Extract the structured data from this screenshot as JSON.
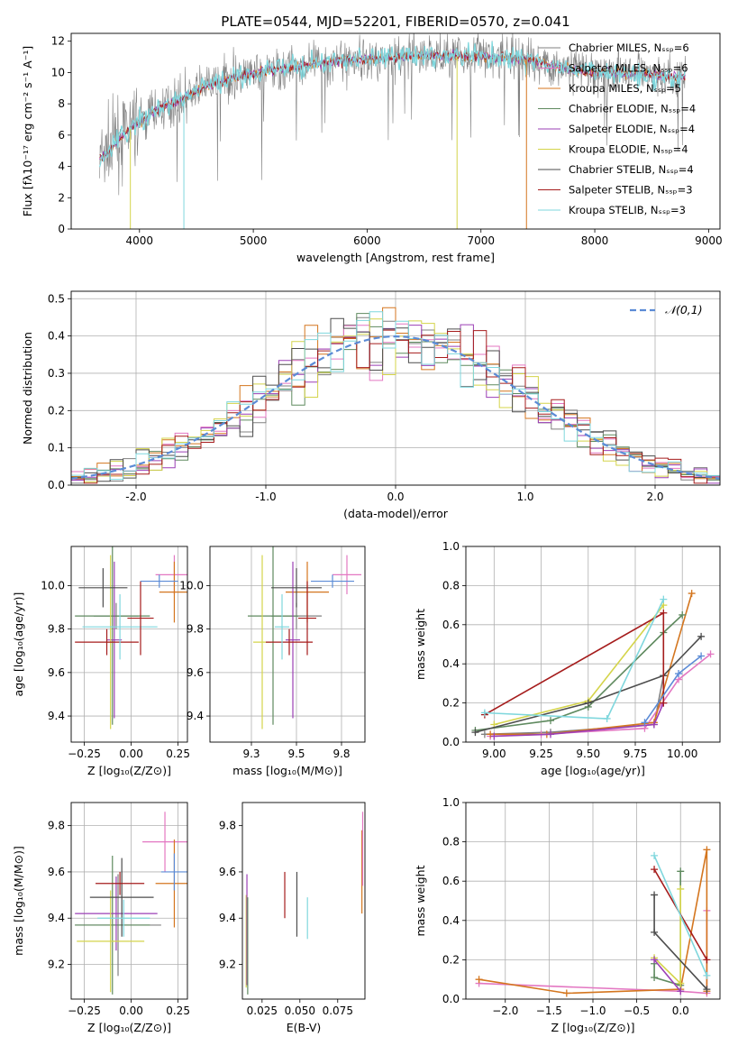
{
  "palette": [
    "#808080",
    "#e377c2",
    "#d4761f",
    "#5f8a5f",
    "#9b3fb5",
    "#d4d44a",
    "#4d4d4d",
    "#a51c1c",
    "#7fd7dd"
  ],
  "chart_data": [
    {
      "id": "spectrum",
      "type": "line",
      "title": "PLATE=0544, MJD=52201, FIBERID=0570, z=0.041",
      "xlabel": "wavelength [Angstrom, rest frame]",
      "ylabel": "Flux [fλ10⁻¹⁷ erg cm⁻² s⁻¹ A⁻¹]",
      "xlim": [
        3400,
        9100
      ],
      "ylim": [
        0,
        12.5
      ],
      "xticks": [
        4000,
        5000,
        6000,
        7000,
        8000,
        9000
      ],
      "yticks": [
        0,
        2,
        4,
        6,
        8,
        10,
        12
      ],
      "legend_position": "top-right",
      "legend": [
        {
          "label": "Chabrier MILES, Nₛₛₚ=6",
          "color": "#808080"
        },
        {
          "label": "Salpeter MILES, Nₛₛₚ=6",
          "color": "#e377c2"
        },
        {
          "label": "Kroupa MILES, Nₛₛₚ=5",
          "color": "#d4761f"
        },
        {
          "label": "Chabrier ELODIE, Nₛₛₚ=4",
          "color": "#5f8a5f"
        },
        {
          "label": "Salpeter ELODIE, Nₛₛₚ=4",
          "color": "#9b3fb5"
        },
        {
          "label": "Kroupa ELODIE, Nₛₛₚ=4",
          "color": "#d4d44a"
        },
        {
          "label": "Chabrier STELIB, Nₛₛₚ=4",
          "color": "#4d4d4d"
        },
        {
          "label": "Salpeter STELIB, Nₛₛₚ=3",
          "color": "#a51c1c"
        },
        {
          "label": "Kroupa STELIB, Nₛₛₚ=3",
          "color": "#7fd7dd"
        }
      ],
      "continuum": {
        "x": [
          3650,
          3720,
          3800,
          3900,
          4000,
          4100,
          4200,
          4300,
          4400,
          4500,
          4700,
          4900,
          5100,
          5300,
          5500,
          5700,
          5900,
          6100,
          6300,
          6500,
          6700,
          6900,
          7100,
          7300,
          7450,
          7600,
          7800,
          8000,
          8200,
          8400,
          8600,
          8800
        ],
        "y": [
          4.5,
          4.8,
          5.6,
          6.3,
          6.8,
          7.4,
          7.8,
          8.1,
          8.4,
          8.8,
          9.4,
          9.8,
          10.1,
          10.3,
          10.5,
          10.7,
          10.8,
          10.9,
          11.0,
          11.1,
          11.1,
          11.0,
          11.0,
          10.9,
          10.8,
          10.5,
          10.2,
          10.0,
          10.0,
          9.9,
          9.8,
          9.6
        ]
      },
      "noise_amplitude": 0.7,
      "dropouts": [
        {
          "x": 3920,
          "y": 0,
          "color": "#d4d44a"
        },
        {
          "x": 4390,
          "y": 0,
          "color": "#7fd7dd"
        },
        {
          "x": 6790,
          "y": 0,
          "color": "#d4d44a"
        },
        {
          "x": 7400,
          "y": 0,
          "color": "#d4761f"
        }
      ]
    },
    {
      "id": "residuals",
      "type": "histogram",
      "xlabel": "(data-model)/error",
      "ylabel": "Normed distribution",
      "xlim": [
        -2.5,
        2.5
      ],
      "ylim": [
        0,
        0.52
      ],
      "xticks": [
        -2,
        -1,
        0,
        1,
        2
      ],
      "yticks": [
        0.0,
        0.1,
        0.2,
        0.3,
        0.4,
        0.5
      ],
      "grid": true,
      "legend_position": "top-right",
      "legend": [
        {
          "label": "𝒩(0,1)",
          "color": "#5b8bd6"
        }
      ],
      "bin_width": 0.1,
      "noise_amplitude": 0.035
    },
    {
      "id": "age-vs-Z",
      "type": "errorbar",
      "xlabel": "Z [log₁₀(Z/Z⊙)]",
      "ylabel": "age  [log₁₀(age/yr)]",
      "xlim": [
        -0.32,
        0.3
      ],
      "ylim": [
        9.28,
        10.18
      ],
      "xticks": [
        -0.25,
        0.0,
        0.25
      ],
      "xticklabels": [
        "−0.25",
        "0.00",
        "0.25"
      ],
      "yticks": [
        9.4,
        9.6,
        9.8,
        10.0
      ],
      "grid": true,
      "points": [
        {
          "x": -0.08,
          "y": 9.86,
          "xerr": 0.12,
          "yerr": 0.06,
          "color": "#808080"
        },
        {
          "x": 0.23,
          "y": 10.05,
          "xerr": 0.1,
          "yerr": 0.09,
          "color": "#e377c2"
        },
        {
          "x": 0.23,
          "y": 9.97,
          "xerr": 0.08,
          "yerr": 0.14,
          "color": "#d4761f"
        },
        {
          "x": -0.1,
          "y": 9.86,
          "xerr": 0.2,
          "yerr": 0.5,
          "color": "#5f8a5f"
        },
        {
          "x": -0.09,
          "y": 9.75,
          "xerr": 0.04,
          "yerr": 0.36,
          "color": "#9b3fb5"
        },
        {
          "x": -0.11,
          "y": 9.74,
          "xerr": 0.02,
          "yerr": 0.4,
          "color": "#d4d44a"
        },
        {
          "x": -0.15,
          "y": 9.99,
          "xerr": 0.13,
          "yerr": 0.09,
          "color": "#4d4d4d"
        },
        {
          "x": -0.13,
          "y": 9.74,
          "xerr": 0.17,
          "yerr": 0.06,
          "color": "#a51c1c"
        },
        {
          "x": -0.06,
          "y": 9.81,
          "xerr": 0.2,
          "yerr": 0.15,
          "color": "#7fd7dd"
        },
        {
          "x": 0.05,
          "y": 9.85,
          "xerr": 0.07,
          "yerr": 0.17,
          "color": "#a51c1c"
        },
        {
          "x": 0.15,
          "y": 10.02,
          "xerr": 0.1,
          "yerr": 0.03,
          "color": "#5b8bd6"
        }
      ]
    },
    {
      "id": "age-vs-mass",
      "type": "errorbar",
      "xlabel": "mass [log₁₀(M/M⊙)]",
      "ylabel": "",
      "xlim": [
        9.02,
        9.88
      ],
      "ylim": [
        9.28,
        10.18
      ],
      "xticks": [
        9.25,
        9.5,
        9.75
      ],
      "yticks": [
        9.4,
        9.6,
        9.8,
        10.0
      ],
      "grid": true,
      "points": [
        {
          "x": 9.5,
          "y": 9.86,
          "xerr": 0.14,
          "yerr": 0.06,
          "color": "#808080"
        },
        {
          "x": 9.78,
          "y": 10.05,
          "xerr": 0.08,
          "yerr": 0.09,
          "color": "#e377c2"
        },
        {
          "x": 9.56,
          "y": 9.97,
          "xerr": 0.12,
          "yerr": 0.14,
          "color": "#d4761f"
        },
        {
          "x": 9.37,
          "y": 9.86,
          "xerr": 0.14,
          "yerr": 0.5,
          "color": "#5f8a5f"
        },
        {
          "x": 9.48,
          "y": 9.75,
          "xerr": 0.04,
          "yerr": 0.36,
          "color": "#9b3fb5"
        },
        {
          "x": 9.31,
          "y": 9.74,
          "xerr": 0.05,
          "yerr": 0.4,
          "color": "#d4d44a"
        },
        {
          "x": 9.5,
          "y": 9.99,
          "xerr": 0.14,
          "yerr": 0.09,
          "color": "#4d4d4d"
        },
        {
          "x": 9.46,
          "y": 9.74,
          "xerr": 0.13,
          "yerr": 0.06,
          "color": "#a51c1c"
        },
        {
          "x": 9.42,
          "y": 9.81,
          "xerr": 0.04,
          "yerr": 0.15,
          "color": "#7fd7dd"
        },
        {
          "x": 9.56,
          "y": 9.85,
          "xerr": 0.05,
          "yerr": 0.17,
          "color": "#a51c1c"
        },
        {
          "x": 9.7,
          "y": 10.02,
          "xerr": 0.12,
          "yerr": 0.03,
          "color": "#5b8bd6"
        }
      ]
    },
    {
      "id": "weight-vs-age",
      "type": "line",
      "xlabel": "age  [log₁₀(age/yr)]",
      "ylabel": "mass weight",
      "xlim": [
        8.85,
        10.2
      ],
      "ylim": [
        0.0,
        1.0
      ],
      "xticks": [
        9.0,
        9.25,
        9.5,
        9.75,
        10.0
      ],
      "xticklabels": [
        "9.00",
        "9.25",
        "9.50",
        "9.75",
        "10.00"
      ],
      "yticks": [
        0.0,
        0.2,
        0.4,
        0.6,
        0.8,
        1.0
      ],
      "grid": true,
      "series": [
        {
          "color": "#808080",
          "x": [
            8.95,
            9.3,
            9.85,
            9.9
          ],
          "y": [
            0.04,
            0.05,
            0.09,
            0.34
          ]
        },
        {
          "color": "#e377c2",
          "x": [
            8.98,
            9.25,
            9.8,
            9.98,
            10.15
          ],
          "y": [
            0.03,
            0.04,
            0.07,
            0.32,
            0.45
          ]
        },
        {
          "color": "#d4761f",
          "x": [
            8.98,
            9.28,
            9.85,
            10.05
          ],
          "y": [
            0.04,
            0.04,
            0.1,
            0.76
          ]
        },
        {
          "color": "#5f8a5f",
          "x": [
            8.9,
            9.3,
            9.5,
            9.9,
            10.0
          ],
          "y": [
            0.06,
            0.11,
            0.18,
            0.56,
            0.65
          ]
        },
        {
          "color": "#9b3fb5",
          "x": [
            9.0,
            9.3,
            9.85,
            9.9
          ],
          "y": [
            0.03,
            0.04,
            0.09,
            0.2
          ]
        },
        {
          "color": "#d4d44a",
          "x": [
            9.0,
            9.5,
            9.9
          ],
          "y": [
            0.09,
            0.21,
            0.7
          ]
        },
        {
          "color": "#4d4d4d",
          "x": [
            8.9,
            9.5,
            9.9,
            10.1
          ],
          "y": [
            0.05,
            0.2,
            0.34,
            0.54
          ]
        },
        {
          "color": "#a51c1c",
          "x": [
            8.95,
            9.9,
            9.9
          ],
          "y": [
            0.14,
            0.66,
            0.2
          ]
        },
        {
          "color": "#7fd7dd",
          "x": [
            8.95,
            9.6,
            9.9
          ],
          "y": [
            0.15,
            0.12,
            0.73
          ]
        },
        {
          "color": "#5b8bd6",
          "x": [
            9.8,
            9.98,
            10.1
          ],
          "y": [
            0.1,
            0.35,
            0.44
          ]
        }
      ]
    },
    {
      "id": "mass-vs-Z",
      "type": "errorbar",
      "xlabel": "Z [log₁₀(Z/Z⊙)]",
      "ylabel": "mass [log₁₀(M/M⊙)]",
      "xlim": [
        -0.32,
        0.3
      ],
      "ylim": [
        9.05,
        9.9
      ],
      "xticks": [
        -0.25,
        0.0,
        0.25
      ],
      "xticklabels": [
        "−0.25",
        "0.00",
        "0.25"
      ],
      "yticks": [
        9.2,
        9.4,
        9.6,
        9.8
      ],
      "grid": true,
      "points": [
        {
          "x": -0.07,
          "y": 9.37,
          "xerr": 0.23,
          "yerr": 0.22,
          "color": "#808080"
        },
        {
          "x": 0.18,
          "y": 9.73,
          "xerr": 0.12,
          "yerr": 0.13,
          "color": "#e377c2"
        },
        {
          "x": 0.23,
          "y": 9.55,
          "xerr": 0.1,
          "yerr": 0.19,
          "color": "#d4761f"
        },
        {
          "x": -0.1,
          "y": 9.37,
          "xerr": 0.2,
          "yerr": 0.3,
          "color": "#5f8a5f"
        },
        {
          "x": -0.08,
          "y": 9.42,
          "xerr": 0.22,
          "yerr": 0.16,
          "color": "#9b3fb5"
        },
        {
          "x": -0.11,
          "y": 9.3,
          "xerr": 0.18,
          "yerr": 0.22,
          "color": "#d4d44a"
        },
        {
          "x": -0.05,
          "y": 9.49,
          "xerr": 0.17,
          "yerr": 0.17,
          "color": "#4d4d4d"
        },
        {
          "x": -0.06,
          "y": 9.55,
          "xerr": 0.13,
          "yerr": 0.05,
          "color": "#a51c1c"
        },
        {
          "x": -0.04,
          "y": 9.4,
          "xerr": 0.14,
          "yerr": 0.08,
          "color": "#7fd7dd"
        },
        {
          "x": 0.23,
          "y": 9.6,
          "xerr": 0.07,
          "yerr": 0.08,
          "color": "#5b8bd6"
        }
      ]
    },
    {
      "id": "mass-vs-EBV",
      "type": "errorbar",
      "xlabel": "E(B-V)",
      "ylabel": "",
      "xlim": [
        0.012,
        0.093
      ],
      "ylim": [
        9.05,
        9.9
      ],
      "xticks": [
        0.025,
        0.05,
        0.075
      ],
      "xticklabels": [
        "0.025",
        "0.050",
        "0.075"
      ],
      "yticks": [
        9.2,
        9.4,
        9.6,
        9.8
      ],
      "grid": false,
      "points": [
        {
          "x": 0.0145,
          "y": 9.3,
          "xerr": 0,
          "yerr": 0.2,
          "color": "#d4d44a"
        },
        {
          "x": 0.015,
          "y": 9.35,
          "xerr": 0,
          "yerr": 0.24,
          "color": "#9b3fb5"
        },
        {
          "x": 0.0155,
          "y": 9.28,
          "xerr": 0,
          "yerr": 0.21,
          "color": "#5f8a5f"
        },
        {
          "x": 0.04,
          "y": 9.5,
          "xerr": 0,
          "yerr": 0.1,
          "color": "#a51c1c"
        },
        {
          "x": 0.048,
          "y": 9.46,
          "xerr": 0,
          "yerr": 0.14,
          "color": "#4d4d4d"
        },
        {
          "x": 0.055,
          "y": 9.4,
          "xerr": 0,
          "yerr": 0.09,
          "color": "#7fd7dd"
        },
        {
          "x": 0.091,
          "y": 9.6,
          "xerr": 0,
          "yerr": 0.18,
          "color": "#d4761f"
        },
        {
          "x": 0.0915,
          "y": 9.7,
          "xerr": 0,
          "yerr": 0.16,
          "color": "#e377c2"
        }
      ]
    },
    {
      "id": "weight-vs-Z",
      "type": "line",
      "xlabel": "Z [log₁₀(Z/Z⊙)]",
      "ylabel": "mass weight",
      "xlim": [
        -2.45,
        0.45
      ],
      "ylim": [
        0.0,
        1.0
      ],
      "xticks": [
        -2.0,
        -1.5,
        -1.0,
        -0.5,
        0.0
      ],
      "xticklabels": [
        "−2.0",
        "−1.5",
        "−1.0",
        "−0.5",
        "0.0"
      ],
      "yticks": [
        0.0,
        0.2,
        0.4,
        0.6,
        0.8,
        1.0
      ],
      "grid": true,
      "series": [
        {
          "color": "#e377c2",
          "x": [
            -2.3,
            0.0,
            0.3,
            0.3
          ],
          "y": [
            0.08,
            0.04,
            0.03,
            0.45
          ]
        },
        {
          "color": "#d4761f",
          "x": [
            -2.3,
            -1.3,
            0.0,
            0.3,
            0.3
          ],
          "y": [
            0.1,
            0.03,
            0.05,
            0.76,
            0.04
          ]
        },
        {
          "color": "#5f8a5f",
          "x": [
            -0.3,
            -0.3,
            0.0,
            0.0
          ],
          "y": [
            0.18,
            0.11,
            0.07,
            0.65
          ]
        },
        {
          "color": "#d4d44a",
          "x": [
            -0.3,
            0.0,
            0.0
          ],
          "y": [
            0.21,
            0.08,
            0.56
          ]
        },
        {
          "color": "#4d4d4d",
          "x": [
            -0.3,
            -0.3,
            0.3
          ],
          "y": [
            0.53,
            0.34,
            0.05
          ]
        },
        {
          "color": "#a51c1c",
          "x": [
            -0.3,
            0.3
          ],
          "y": [
            0.66,
            0.2
          ]
        },
        {
          "color": "#7fd7dd",
          "x": [
            -0.3,
            0.3
          ],
          "y": [
            0.73,
            0.12
          ]
        },
        {
          "color": "#9b3fb5",
          "x": [
            -0.3,
            0.0
          ],
          "y": [
            0.2,
            0.04
          ]
        }
      ]
    }
  ]
}
